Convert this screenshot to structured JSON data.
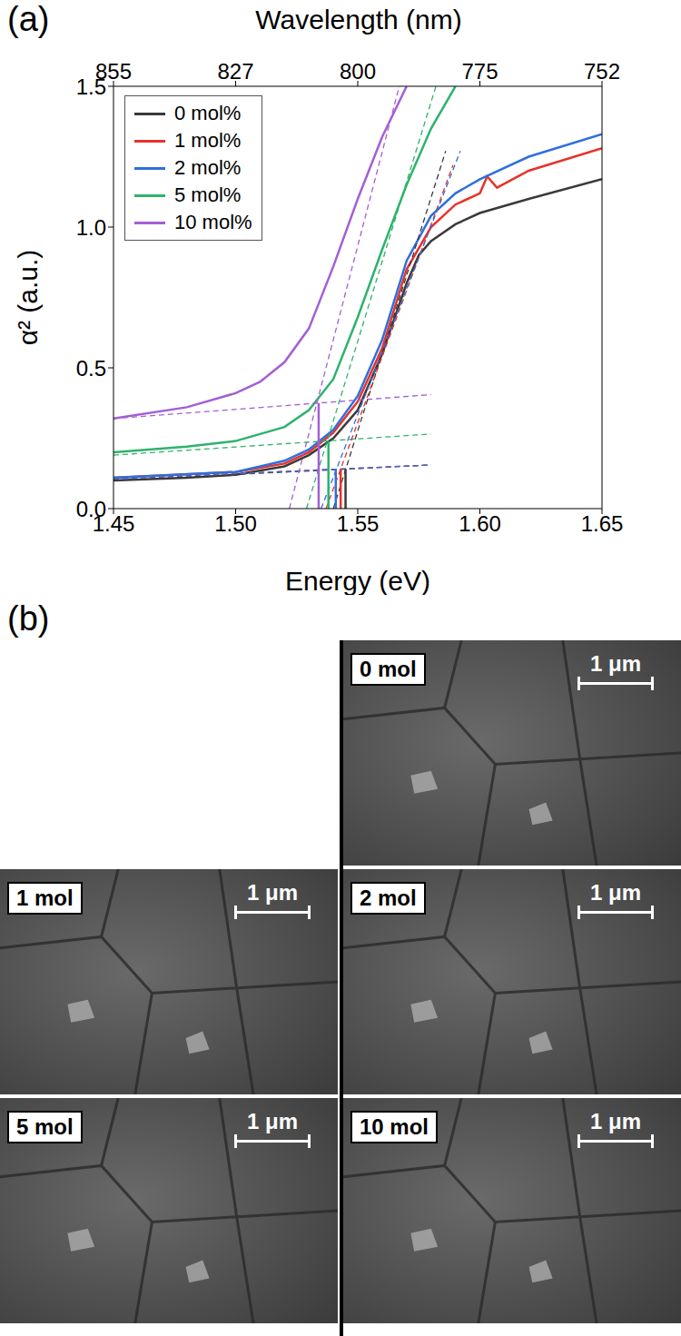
{
  "chart_data": {
    "type": "line",
    "panel_label": "(a)",
    "xlabel": "Energy (eV)",
    "ylabel": "α² (a.u.)",
    "x2label": "Wavelength (nm)",
    "xlim": [
      1.45,
      1.65
    ],
    "xticks": [
      {
        "value": 1.45,
        "label": "1.45"
      },
      {
        "value": 1.5,
        "label": "1.50"
      },
      {
        "value": 1.55,
        "label": "1.55"
      },
      {
        "value": 1.6,
        "label": "1.60"
      },
      {
        "value": 1.65,
        "label": "1.65"
      }
    ],
    "x2ticks": [
      {
        "value": 1.45,
        "label": "855"
      },
      {
        "value": 1.5,
        "label": "827"
      },
      {
        "value": 1.55,
        "label": "800"
      },
      {
        "value": 1.6,
        "label": "775"
      },
      {
        "value": 1.65,
        "label": "752"
      }
    ],
    "ylim": [
      0,
      1.5
    ],
    "yticks": [
      {
        "value": 0,
        "label": "0.0"
      },
      {
        "value": 0.5,
        "label": "0.5"
      },
      {
        "value": 1.0,
        "label": "1.0"
      },
      {
        "value": 1.5,
        "label": "1.5"
      }
    ],
    "legend": "upper left",
    "series": [
      {
        "name": "0 mol%",
        "color": "#3a3a3a",
        "x": [
          1.45,
          1.48,
          1.5,
          1.52,
          1.53,
          1.54,
          1.55,
          1.56,
          1.57,
          1.575,
          1.58,
          1.59,
          1.6,
          1.62,
          1.65
        ],
        "values": [
          0.1,
          0.11,
          0.12,
          0.15,
          0.19,
          0.25,
          0.35,
          0.55,
          0.8,
          0.9,
          0.95,
          1.01,
          1.05,
          1.1,
          1.17
        ],
        "fit": {
          "baseline": [
            [
              1.45,
              0.1
            ],
            [
              1.58,
              0.155
            ]
          ],
          "tangent": [
            [
              1.54,
              0
            ],
            [
              1.586,
              1.27
            ]
          ],
          "band_gap": 1.545,
          "band_gap_y": 0.14
        }
      },
      {
        "name": "1 mol%",
        "color": "#e8312a",
        "x": [
          1.45,
          1.5,
          1.52,
          1.53,
          1.54,
          1.55,
          1.56,
          1.57,
          1.58,
          1.59,
          1.6,
          1.603,
          1.607,
          1.62,
          1.65
        ],
        "values": [
          0.11,
          0.13,
          0.16,
          0.2,
          0.27,
          0.38,
          0.57,
          0.85,
          1.0,
          1.08,
          1.12,
          1.18,
          1.14,
          1.2,
          1.28
        ],
        "fit": {
          "baseline": [
            [
              1.45,
              0.105
            ],
            [
              1.58,
              0.155
            ]
          ],
          "tangent": [
            [
              1.537,
              0
            ],
            [
              1.589,
              1.22
            ]
          ],
          "band_gap": 1.543,
          "band_gap_y": 0.14
        }
      },
      {
        "name": "2 mol%",
        "color": "#2e6fdf",
        "x": [
          1.45,
          1.5,
          1.52,
          1.53,
          1.54,
          1.55,
          1.56,
          1.57,
          1.58,
          1.59,
          1.6,
          1.62,
          1.65
        ],
        "values": [
          0.11,
          0.13,
          0.17,
          0.21,
          0.28,
          0.4,
          0.6,
          0.88,
          1.04,
          1.12,
          1.17,
          1.25,
          1.33
        ],
        "fit": {
          "baseline": [
            [
              1.45,
              0.105
            ],
            [
              1.58,
              0.155
            ]
          ],
          "tangent": [
            [
              1.535,
              0
            ],
            [
              1.592,
              1.27
            ]
          ],
          "band_gap": 1.541,
          "band_gap_y": 0.14
        }
      },
      {
        "name": "5 mol%",
        "color": "#2db36b",
        "x": [
          1.45,
          1.48,
          1.5,
          1.52,
          1.53,
          1.54,
          1.55,
          1.56,
          1.57,
          1.58,
          1.59
        ],
        "values": [
          0.2,
          0.22,
          0.24,
          0.29,
          0.35,
          0.46,
          0.68,
          0.92,
          1.15,
          1.35,
          1.5
        ],
        "fit": {
          "baseline": [
            [
              1.45,
              0.19
            ],
            [
              1.58,
              0.265
            ]
          ],
          "tangent": [
            [
              1.529,
              0
            ],
            [
              1.582,
              1.5
            ]
          ],
          "band_gap": 1.538,
          "band_gap_y": 0.24
        }
      },
      {
        "name": "10 mol%",
        "color": "#a35fd6",
        "x": [
          1.45,
          1.48,
          1.5,
          1.51,
          1.52,
          1.53,
          1.54,
          1.55,
          1.56,
          1.57
        ],
        "values": [
          0.32,
          0.36,
          0.41,
          0.45,
          0.52,
          0.64,
          0.86,
          1.1,
          1.32,
          1.5
        ],
        "fit": {
          "baseline": [
            [
              1.45,
              0.32
            ],
            [
              1.58,
              0.405
            ]
          ],
          "tangent": [
            [
              1.522,
              0
            ],
            [
              1.567,
              1.5
            ]
          ],
          "band_gap": 1.534,
          "band_gap_y": 0.375
        }
      }
    ]
  },
  "panel_b": {
    "panel_label": "(b)",
    "images": [
      {
        "label": "0 mol",
        "scale_bar": "1 μm"
      },
      {
        "label": "1 mol",
        "scale_bar": "1 μm"
      },
      {
        "label": "2 mol",
        "scale_bar": "1 μm"
      },
      {
        "label": "5 mol",
        "scale_bar": "1 μm"
      },
      {
        "label": "10 mol",
        "scale_bar": "1 μm"
      }
    ]
  }
}
